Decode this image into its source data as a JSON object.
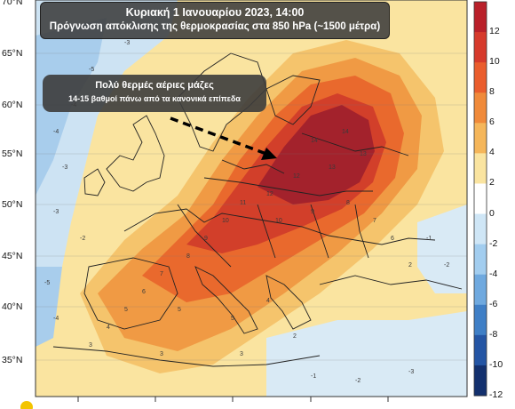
{
  "title": {
    "line1": "Κυριακή 1 Ιανουαρίου 2023, 14:00",
    "line2": "Πρόγνωση απόκλισης της θερμοκρασίας στα 850 hPa (~1500 μέτρα)"
  },
  "annotation": {
    "line1": "Πολύ θερμές αέριες μάζες",
    "line2": "14-15 βαθμοί πάνω από τα κανονικά επίπεδα"
  },
  "lat_labels": [
    "70°N",
    "65°N",
    "60°N",
    "55°N",
    "50°N",
    "45°N",
    "40°N",
    "35°N"
  ],
  "colorbar": {
    "labels": [
      "12",
      "10",
      "8",
      "6",
      "4",
      "2",
      "0",
      "-2",
      "-4",
      "-6",
      "-8",
      "-10",
      "-12"
    ],
    "colors": [
      "#b9202a",
      "#d63a2c",
      "#ea5d2d",
      "#f08a3a",
      "#f5b65a",
      "#fae4a0",
      "#ffffff",
      "#cfe6f6",
      "#a2cdef",
      "#6fa9df",
      "#3f7fc6",
      "#2455a4",
      "#13306e"
    ]
  },
  "map_colors": {
    "land_background": "#fae4a0",
    "sea_background": "#cde3f3",
    "warm_4": "#f5c46c",
    "warm_6": "#f09a44",
    "warm_8": "#e9692d",
    "warm_10": "#d23f2a",
    "warm_12": "#a3222c"
  },
  "contour_values": [
    "14",
    "13",
    "12",
    "11",
    "10",
    "9",
    "8",
    "7",
    "6",
    "5",
    "4",
    "3",
    "2",
    "-1",
    "-2",
    "-3",
    "-4",
    "-5"
  ]
}
